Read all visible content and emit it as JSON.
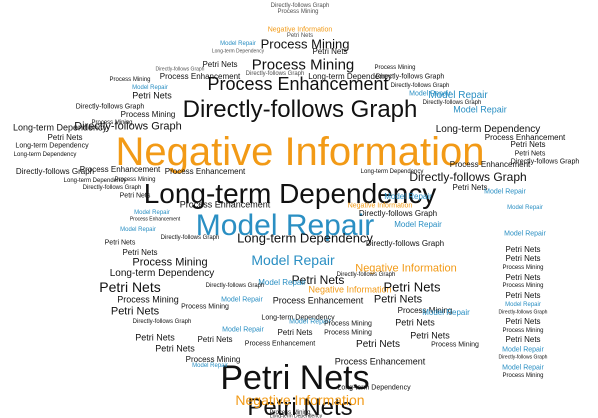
{
  "terms": {
    "petri_nets": "Petri Nets",
    "negative_information": "Negative Information",
    "model_repair": "Model Repair",
    "long_term_dependency": "Long-term Dependency",
    "directly_follows_graph": "Directly-follows Graph",
    "process_enhancement": "Process Enhancement",
    "process_mining": "Process Mining"
  },
  "colors": {
    "dark": "#111111",
    "orange": "#f29a16",
    "blue": "#2a8fc3",
    "gray": "#8a8a8a"
  },
  "shape": "graduation-cap"
}
